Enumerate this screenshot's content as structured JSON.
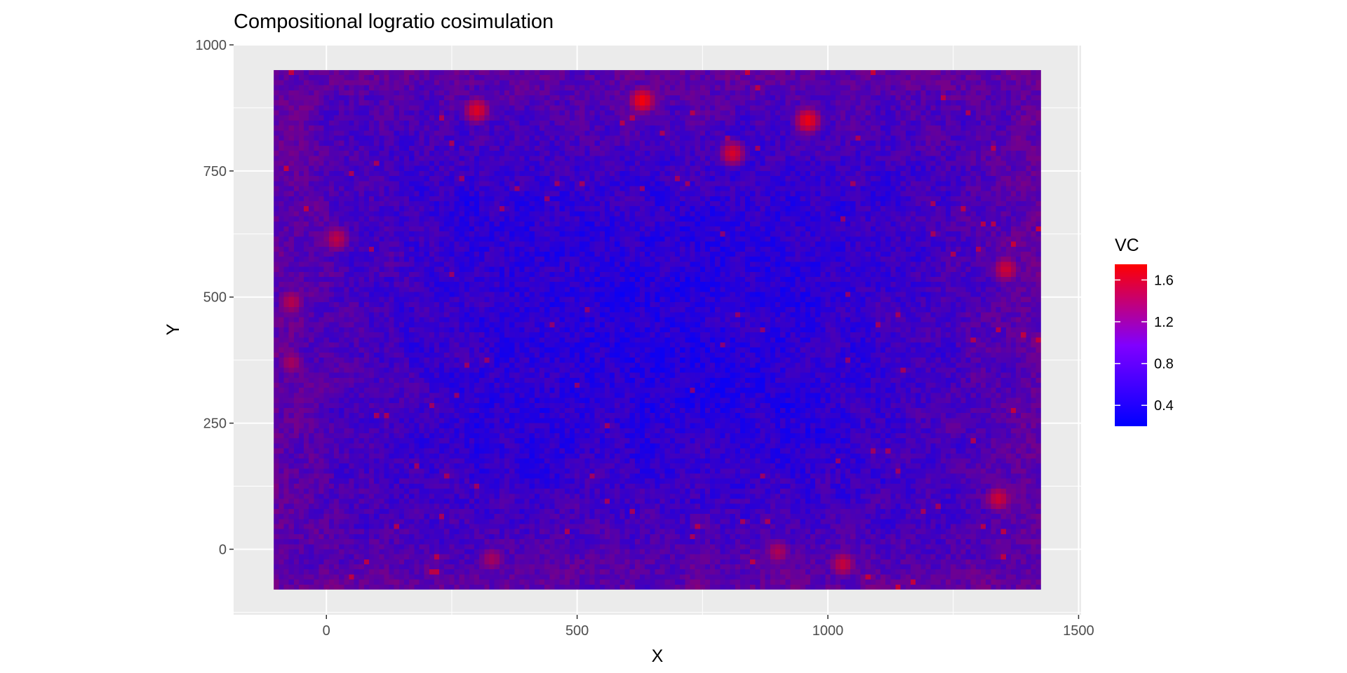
{
  "chart_data": {
    "type": "heatmap",
    "title": "Compositional logratio cosimulation",
    "xlabel": "X",
    "ylabel": "Y",
    "xlim": [
      -185,
      1505
    ],
    "ylim": [
      -130,
      1000
    ],
    "x_ticks": [
      0,
      500,
      1000,
      1500
    ],
    "y_ticks": [
      0,
      250,
      500,
      750,
      1000
    ],
    "grid": true,
    "raster_extent": {
      "x": [
        -105,
        1425
      ],
      "y": [
        -80,
        950
      ]
    },
    "raster_cells": {
      "nx": 153,
      "ny": 103
    },
    "fill_scale": {
      "name": "VC",
      "low_color": "#0000ff",
      "high_color": "#ff0000",
      "limits": [
        0.2,
        1.75
      ],
      "breaks": [
        0.4,
        0.8,
        1.2,
        1.6
      ],
      "break_labels": [
        "0.4",
        "0.8",
        "1.2",
        "1.6"
      ]
    },
    "legend_position": "right",
    "hotspots": [
      {
        "x": 300,
        "y": 870,
        "value": 1.55
      },
      {
        "x": 630,
        "y": 890,
        "value": 1.7
      },
      {
        "x": 960,
        "y": 850,
        "value": 1.65
      },
      {
        "x": 810,
        "y": 785,
        "value": 1.5
      },
      {
        "x": 20,
        "y": 615,
        "value": 1.35
      },
      {
        "x": 1355,
        "y": 555,
        "value": 1.45
      },
      {
        "x": 1340,
        "y": 100,
        "value": 1.45
      },
      {
        "x": 1030,
        "y": -30,
        "value": 1.4
      },
      {
        "x": -70,
        "y": 490,
        "value": 1.3
      },
      {
        "x": -70,
        "y": 370,
        "value": 1.2
      },
      {
        "x": 330,
        "y": -20,
        "value": 1.2
      },
      {
        "x": 900,
        "y": -5,
        "value": 1.25
      }
    ]
  }
}
